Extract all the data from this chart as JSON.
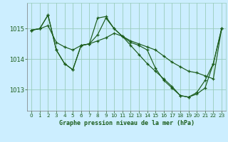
{
  "title": "Graphe pression niveau de la mer (hPa)",
  "background_color": "#cceeff",
  "grid_color": "#99ccbb",
  "line_color": "#1a5c1a",
  "text_color": "#1a5c1a",
  "xlim": [
    -0.5,
    23.5
  ],
  "ylim": [
    1012.3,
    1015.85
  ],
  "yticks": [
    1013,
    1014,
    1015
  ],
  "xticks": [
    0,
    1,
    2,
    3,
    4,
    5,
    6,
    7,
    8,
    9,
    10,
    11,
    12,
    13,
    14,
    15,
    16,
    17,
    18,
    19,
    20,
    21,
    22,
    23
  ],
  "series": [
    [
      1014.95,
      1015.0,
      1015.1,
      1014.55,
      1014.4,
      1014.3,
      1014.45,
      1014.5,
      1014.6,
      1014.7,
      1014.85,
      1014.75,
      1014.6,
      1014.5,
      1014.4,
      1014.3,
      1014.1,
      1013.9,
      1013.75,
      1013.6,
      1013.55,
      1013.45,
      1013.35,
      1015.0
    ],
    [
      1014.95,
      1015.0,
      1015.45,
      1014.3,
      1013.85,
      1013.65,
      1014.45,
      1014.5,
      1015.35,
      1015.4,
      1015.0,
      1014.75,
      1014.55,
      1014.45,
      1014.3,
      1013.7,
      1013.3,
      1013.05,
      1012.8,
      1012.75,
      1012.85,
      1013.05,
      1013.85,
      1015.0
    ],
    [
      1014.95,
      1015.0,
      1015.45,
      1014.3,
      1013.85,
      1013.65,
      1014.45,
      1014.5,
      1014.8,
      1015.35,
      1015.0,
      1014.75,
      1014.45,
      1014.15,
      1013.85,
      1013.6,
      1013.35,
      1013.1,
      1012.8,
      1012.75,
      1012.9,
      1013.3,
      1013.85,
      1015.0
    ]
  ]
}
